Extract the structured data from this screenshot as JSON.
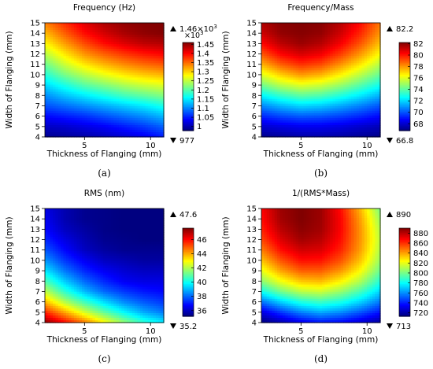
{
  "panels": [
    {
      "letter": "a",
      "caption": "(a)",
      "title": "Frequency (Hz)",
      "xlabel": "Thickness of Flanging (mm)",
      "ylabel": "Width of Flanging (mm)",
      "max_label": "1.46×10",
      "max_exp": "3",
      "cb_scale_base": "×10",
      "cb_scale_exp": "3",
      "min_label": "977",
      "vmin": 977,
      "vmax": 1460,
      "cb_ticks": [
        {
          "value": 1000,
          "label": "1"
        },
        {
          "value": 1050,
          "label": "1.05"
        },
        {
          "value": 1100,
          "label": "1.1"
        },
        {
          "value": 1150,
          "label": "1.15"
        },
        {
          "value": 1200,
          "label": "1.2"
        },
        {
          "value": 1250,
          "label": "1.25"
        },
        {
          "value": 1300,
          "label": "1.3"
        },
        {
          "value": 1350,
          "label": "1.35"
        },
        {
          "value": 1400,
          "label": "1.4"
        },
        {
          "value": 1450,
          "label": "1.45"
        }
      ]
    },
    {
      "letter": "b",
      "caption": "(b)",
      "title": "Frequency/Mass",
      "xlabel": "Thickness of Flanging (mm)",
      "ylabel": "Width of Flanging (mm)",
      "max_label": "82.2",
      "min_label": "66.8",
      "vmin": 66.8,
      "vmax": 82.2,
      "cb_ticks": [
        {
          "value": 68,
          "label": "68"
        },
        {
          "value": 70,
          "label": "70"
        },
        {
          "value": 72,
          "label": "72"
        },
        {
          "value": 74,
          "label": "74"
        },
        {
          "value": 76,
          "label": "76"
        },
        {
          "value": 78,
          "label": "78"
        },
        {
          "value": 80,
          "label": "80"
        },
        {
          "value": 82,
          "label": "82"
        }
      ]
    },
    {
      "letter": "c",
      "caption": "(c)",
      "title": "RMS (nm)",
      "xlabel": "Thickness of Flanging (mm)",
      "ylabel": "Width of Flanging (mm)",
      "max_label": "47.6",
      "min_label": "35.2",
      "vmin": 35.2,
      "vmax": 47.6,
      "cb_ticks": [
        {
          "value": 36,
          "label": "36"
        },
        {
          "value": 38,
          "label": "38"
        },
        {
          "value": 40,
          "label": "40"
        },
        {
          "value": 42,
          "label": "42"
        },
        {
          "value": 44,
          "label": "44"
        },
        {
          "value": 46,
          "label": "46"
        }
      ]
    },
    {
      "letter": "d",
      "caption": "(d)",
      "title": "1/(RMS*Mass)",
      "xlabel": "Thickness of Flanging (mm)",
      "ylabel": "Width of Flanging (mm)",
      "max_label": "890",
      "min_label": "713",
      "vmin": 713,
      "vmax": 890,
      "cb_ticks": [
        {
          "value": 720,
          "label": "720"
        },
        {
          "value": 740,
          "label": "740"
        },
        {
          "value": 760,
          "label": "760"
        },
        {
          "value": 780,
          "label": "780"
        },
        {
          "value": 800,
          "label": "800"
        },
        {
          "value": 820,
          "label": "820"
        },
        {
          "value": 840,
          "label": "840"
        },
        {
          "value": 860,
          "label": "860"
        },
        {
          "value": 880,
          "label": "880"
        }
      ]
    }
  ],
  "chart_data": [
    {
      "type": "heatmap",
      "title": "Frequency (Hz)",
      "xlabel": "Thickness of Flanging (mm)",
      "ylabel": "Width of Flanging (mm)",
      "xlim": [
        2,
        11
      ],
      "ylim": [
        4,
        15
      ],
      "x_ticks": [
        5,
        10
      ],
      "y_ticks": [
        4,
        5,
        6,
        7,
        8,
        9,
        10,
        11,
        12,
        13,
        14,
        15
      ],
      "colorbar_range": [
        977,
        1460
      ],
      "x": [
        2,
        3.5,
        5,
        6.5,
        8,
        9.5,
        11
      ],
      "y": [
        4,
        5,
        6,
        7,
        8,
        9,
        10,
        11,
        12,
        13,
        14,
        15
      ],
      "z": [
        [
          985,
          990,
          995,
          1005,
          1015,
          1030,
          1050
        ],
        [
          1010,
          1015,
          1025,
          1035,
          1050,
          1065,
          1085
        ],
        [
          1040,
          1050,
          1060,
          1075,
          1090,
          1105,
          1125
        ],
        [
          1075,
          1090,
          1105,
          1120,
          1135,
          1150,
          1170
        ],
        [
          1105,
          1130,
          1150,
          1170,
          1190,
          1205,
          1220
        ],
        [
          1140,
          1170,
          1200,
          1220,
          1240,
          1255,
          1265
        ],
        [
          1175,
          1215,
          1245,
          1270,
          1290,
          1305,
          1315
        ],
        [
          1210,
          1255,
          1290,
          1315,
          1335,
          1350,
          1360
        ],
        [
          1245,
          1290,
          1330,
          1355,
          1375,
          1390,
          1400
        ],
        [
          1280,
          1325,
          1365,
          1395,
          1415,
          1430,
          1435
        ],
        [
          1310,
          1355,
          1395,
          1420,
          1440,
          1452,
          1458
        ],
        [
          1340,
          1380,
          1415,
          1440,
          1452,
          1458,
          1460
        ]
      ]
    },
    {
      "type": "heatmap",
      "title": "Frequency/Mass",
      "xlabel": "Thickness of Flanging (mm)",
      "ylabel": "Width of Flanging (mm)",
      "xlim": [
        2,
        11
      ],
      "ylim": [
        4,
        15
      ],
      "x_ticks": [
        5,
        10
      ],
      "y_ticks": [
        4,
        5,
        6,
        7,
        8,
        9,
        10,
        11,
        12,
        13,
        14,
        15
      ],
      "colorbar_range": [
        66.8,
        82.2
      ],
      "x": [
        2,
        3.5,
        5,
        6.5,
        8,
        9.5,
        11
      ],
      "y": [
        4,
        5,
        6,
        7,
        8,
        9,
        10,
        11,
        12,
        13,
        14,
        15
      ],
      "z": [
        [
          67.0,
          67.2,
          67.4,
          67.4,
          67.3,
          67.1,
          66.9
        ],
        [
          68.0,
          68.3,
          68.5,
          68.5,
          68.3,
          68.0,
          67.7
        ],
        [
          69.3,
          69.8,
          70.1,
          70.0,
          69.7,
          69.3,
          68.8
        ],
        [
          70.8,
          71.5,
          72.0,
          71.8,
          71.3,
          70.7,
          70.0
        ],
        [
          72.5,
          73.4,
          74.0,
          73.8,
          73.1,
          72.3,
          71.4
        ],
        [
          74.3,
          75.4,
          76.0,
          75.7,
          74.9,
          73.9,
          72.8
        ],
        [
          76.0,
          77.2,
          78.0,
          77.6,
          76.6,
          75.4,
          74.1
        ],
        [
          77.6,
          78.9,
          79.6,
          79.2,
          78.1,
          76.8,
          75.3
        ],
        [
          79.0,
          80.3,
          80.9,
          80.5,
          79.4,
          78.0,
          76.4
        ],
        [
          80.2,
          81.3,
          81.8,
          81.4,
          80.4,
          79.0,
          77.3
        ],
        [
          81.0,
          81.9,
          82.1,
          81.9,
          81.0,
          79.7,
          78.0
        ],
        [
          81.5,
          82.1,
          82.2,
          82.1,
          81.4,
          80.2,
          78.5
        ]
      ]
    },
    {
      "type": "heatmap",
      "title": "RMS (nm)",
      "xlabel": "Thickness of Flanging (mm)",
      "ylabel": "Width of Flanging (mm)",
      "xlim": [
        2,
        11
      ],
      "ylim": [
        4,
        15
      ],
      "x_ticks": [
        5,
        10
      ],
      "y_ticks": [
        4,
        5,
        6,
        7,
        8,
        9,
        10,
        11,
        12,
        13,
        14,
        15
      ],
      "colorbar_range": [
        35.2,
        47.6
      ],
      "x": [
        2,
        3.5,
        5,
        6.5,
        8,
        9.5,
        11
      ],
      "y": [
        4,
        5,
        6,
        7,
        8,
        9,
        10,
        11,
        12,
        13,
        14,
        15
      ],
      "z": [
        [
          47.4,
          46.0,
          44.6,
          43.0,
          41.6,
          40.4,
          39.6
        ],
        [
          45.6,
          44.0,
          42.4,
          41.0,
          39.8,
          38.8,
          38.2
        ],
        [
          43.8,
          42.0,
          40.6,
          39.4,
          38.4,
          37.8,
          37.4
        ],
        [
          42.2,
          40.4,
          39.0,
          38.0,
          37.4,
          37.0,
          36.8
        ],
        [
          40.8,
          39.2,
          38.0,
          37.2,
          36.6,
          36.4,
          36.4
        ],
        [
          39.6,
          38.2,
          37.2,
          36.6,
          36.2,
          36.0,
          36.0
        ],
        [
          38.6,
          37.4,
          36.6,
          36.0,
          35.8,
          35.6,
          35.6
        ],
        [
          37.8,
          36.8,
          36.0,
          35.6,
          35.4,
          35.4,
          35.4
        ],
        [
          37.2,
          36.4,
          35.8,
          35.4,
          35.3,
          35.2,
          35.2
        ],
        [
          36.8,
          36.0,
          35.6,
          35.3,
          35.2,
          35.2,
          35.2
        ],
        [
          36.6,
          35.8,
          35.4,
          35.3,
          35.2,
          35.2,
          35.2
        ],
        [
          36.4,
          35.8,
          35.4,
          35.3,
          35.2,
          35.2,
          35.2
        ]
      ]
    },
    {
      "type": "heatmap",
      "title": "1/(RMS*Mass)",
      "xlabel": "Thickness of Flanging (mm)",
      "ylabel": "Width of Flanging (mm)",
      "xlim": [
        2,
        11
      ],
      "ylim": [
        4,
        15
      ],
      "x_ticks": [
        5,
        10
      ],
      "y_ticks": [
        4,
        5,
        6,
        7,
        8,
        9,
        10,
        11,
        12,
        13,
        14,
        15
      ],
      "colorbar_range": [
        713,
        890
      ],
      "x": [
        2,
        3.5,
        5,
        6.5,
        8,
        9.5,
        11
      ],
      "y": [
        4,
        5,
        6,
        7,
        8,
        9,
        10,
        11,
        12,
        13,
        14,
        15
      ],
      "z": [
        [
          713,
          722,
          732,
          738,
          735,
          728,
          718
        ],
        [
          730,
          745,
          758,
          765,
          760,
          750,
          738
        ],
        [
          755,
          772,
          785,
          790,
          784,
          772,
          756
        ],
        [
          782,
          800,
          812,
          815,
          806,
          792,
          772
        ],
        [
          804,
          822,
          834,
          836,
          826,
          810,
          786
        ],
        [
          820,
          840,
          852,
          852,
          842,
          824,
          798
        ],
        [
          834,
          854,
          866,
          865,
          854,
          834,
          806
        ],
        [
          846,
          866,
          876,
          874,
          862,
          840,
          810
        ],
        [
          856,
          874,
          884,
          880,
          866,
          842,
          812
        ],
        [
          862,
          880,
          888,
          884,
          868,
          842,
          810
        ],
        [
          866,
          884,
          890,
          885,
          868,
          840,
          806
        ],
        [
          868,
          885,
          890,
          885,
          866,
          836,
          800
        ]
      ]
    }
  ]
}
